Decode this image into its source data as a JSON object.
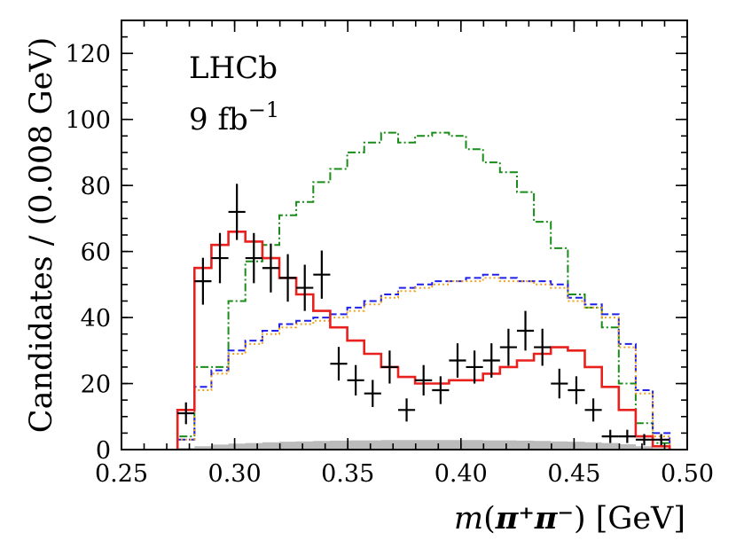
{
  "chart_data": {
    "type": "histogram",
    "experiment_label": "LHCb",
    "luminosity_label": {
      "value": "9 fb",
      "exponent": "−1"
    },
    "xlabel": {
      "italic": "m",
      "open": "(",
      "particles": "π⁺π⁻",
      "close": ")",
      "unit": " [GeV]"
    },
    "ylabel": "Candidates / (0.008 GeV)",
    "xlim": [
      0.25,
      0.5
    ],
    "ylim": [
      0,
      130
    ],
    "x_ticks": [
      "0.25",
      "0.30",
      "0.35",
      "0.40",
      "0.45",
      "0.50"
    ],
    "y_ticks": [
      "0",
      "20",
      "40",
      "60",
      "80",
      "100",
      "120"
    ],
    "bin_width": 0.0075,
    "bin_centers": [
      0.2785,
      0.286,
      0.2935,
      0.301,
      0.3085,
      0.316,
      0.3235,
      0.331,
      0.3385,
      0.346,
      0.3535,
      0.361,
      0.3685,
      0.376,
      0.3835,
      0.391,
      0.3985,
      0.406,
      0.4135,
      0.421,
      0.4285,
      0.436,
      0.4435,
      0.451,
      0.4585,
      0.466,
      0.4735,
      0.481,
      0.4885
    ],
    "series": [
      {
        "style": "data-points",
        "color": "#000000",
        "values": [
          11,
          51,
          58,
          72,
          58,
          55,
          52,
          49,
          53,
          26,
          21,
          17,
          25,
          12,
          21,
          18,
          27,
          25,
          27,
          31,
          36,
          31,
          20,
          18,
          12,
          4,
          4,
          3,
          3
        ],
        "errors": [
          3.3,
          7.1,
          7.6,
          8.5,
          7.6,
          7.4,
          7.2,
          7.0,
          7.3,
          5.1,
          4.6,
          4.1,
          5.0,
          3.5,
          4.6,
          4.2,
          5.2,
          5.0,
          5.2,
          5.6,
          6.0,
          5.6,
          4.5,
          4.2,
          3.5,
          2.0,
          2.0,
          1.7,
          1.7
        ]
      },
      {
        "style": "solid",
        "color": "#e8201e",
        "values": [
          12,
          55,
          62,
          66,
          63,
          58,
          52,
          47,
          42,
          37,
          33,
          29,
          25,
          22,
          20,
          20,
          21,
          21,
          23,
          25,
          27,
          29,
          31,
          30,
          25,
          19,
          12,
          4,
          1
        ]
      },
      {
        "style": "dash-dot",
        "color": "#198c19",
        "values": [
          4,
          25,
          25,
          45,
          57,
          62,
          71,
          75,
          81,
          85,
          90,
          93,
          96,
          93,
          95,
          96,
          95,
          91,
          87,
          84,
          78,
          69,
          61,
          47,
          43,
          37,
          20,
          8,
          2
        ]
      },
      {
        "style": "dashed",
        "color": "#2020e8",
        "values": [
          3,
          19,
          24,
          30,
          33,
          36,
          38,
          39,
          40,
          41,
          43,
          45,
          47,
          49,
          50,
          51,
          51,
          52,
          53,
          52,
          51,
          51,
          50,
          46,
          44,
          41,
          32,
          18,
          5
        ]
      },
      {
        "style": "dotted",
        "color": "#f0a020",
        "values": [
          3,
          18,
          23,
          29,
          32,
          35,
          37,
          38,
          39,
          40,
          42,
          44,
          46,
          48,
          49,
          50,
          51,
          51,
          52,
          51,
          51,
          50,
          49,
          45,
          43,
          40,
          31,
          17,
          4
        ]
      },
      {
        "style": "filled",
        "color": "#bbbbbb",
        "values": [
          0.5,
          1.0,
          1.5,
          1.8,
          2.0,
          2.2,
          2.4,
          2.5,
          2.6,
          2.7,
          2.8,
          2.8,
          2.9,
          2.9,
          2.9,
          2.9,
          2.9,
          2.9,
          2.8,
          2.8,
          2.7,
          2.6,
          2.5,
          2.4,
          2.2,
          2.0,
          1.6,
          1.0,
          0.4
        ]
      }
    ]
  }
}
